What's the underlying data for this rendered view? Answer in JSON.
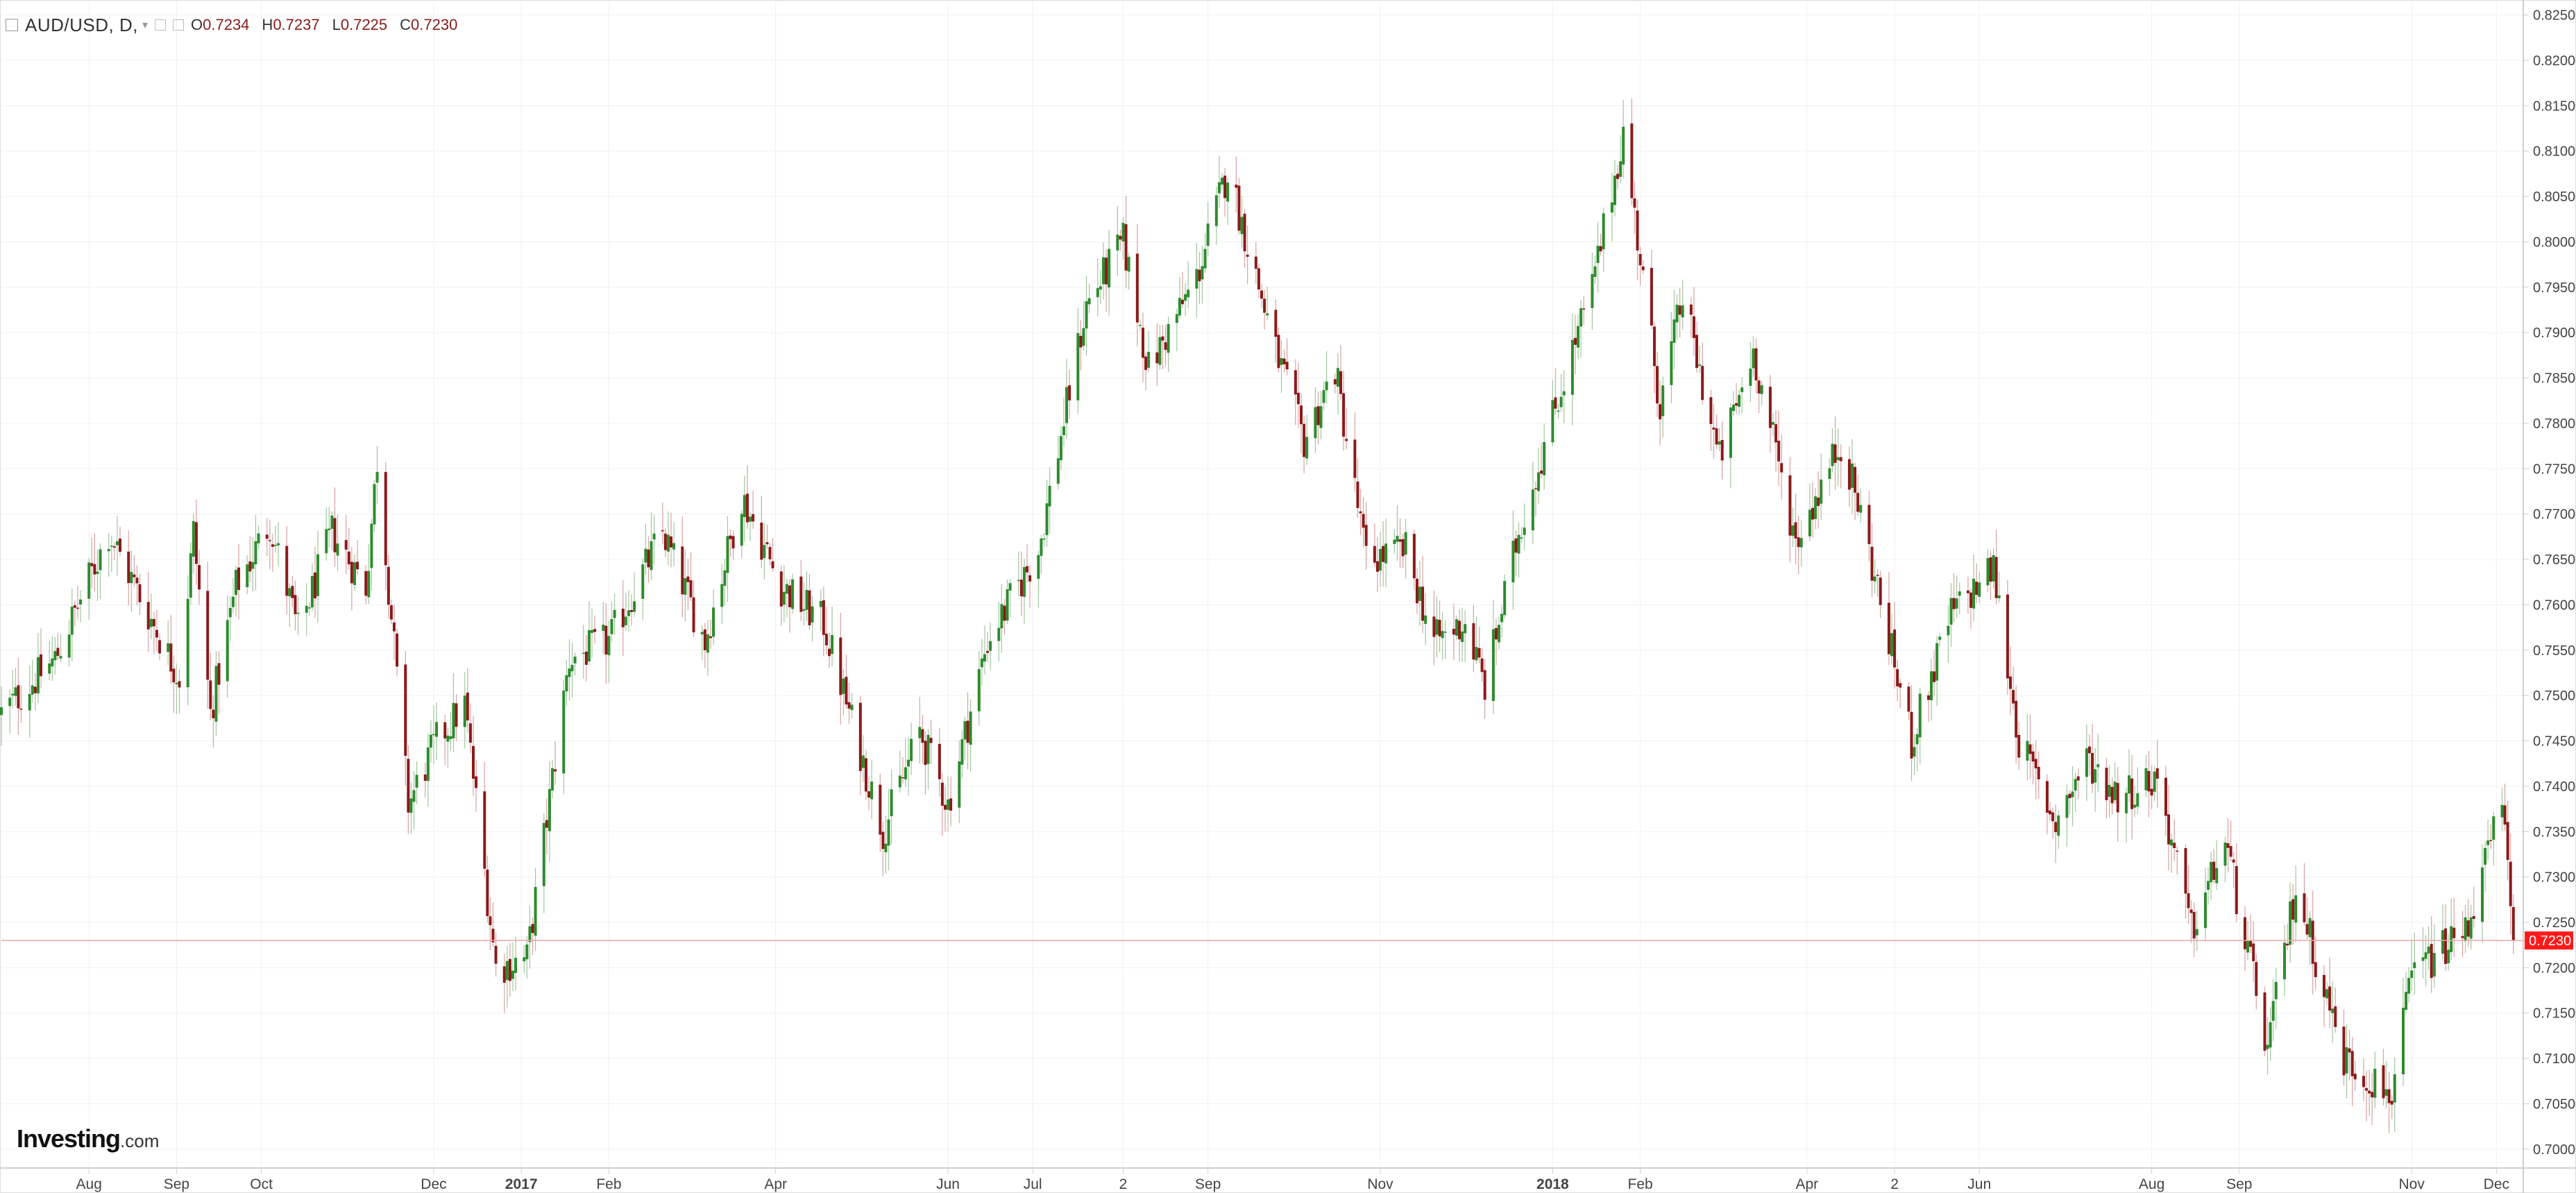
{
  "legend": {
    "symbol": "AUD/USD, D,",
    "open_label": "O",
    "open": "0.7234",
    "high_label": "H",
    "high": "0.7237",
    "low_label": "L",
    "low": "0.7225",
    "close_label": "C",
    "close": "0.7230"
  },
  "brand": {
    "name": "Investing",
    "suffix": ".com"
  },
  "colors": {
    "up": "#2e8b2e",
    "down": "#8b1a1a",
    "wick_up": "#9ec79e",
    "wick_down": "#d9a0a0",
    "grid": "#f0f0f0",
    "axis": "#cfcfcf",
    "last_price": "#ff1a1a"
  },
  "chart_data": {
    "type": "candlestick",
    "title": "",
    "xlabel": "",
    "ylabel": "",
    "grid": true,
    "ylim": [
      0.698,
      0.8265
    ],
    "y_ticks": [
      "0.8250",
      "0.8200",
      "0.8150",
      "0.8100",
      "0.8050",
      "0.8000",
      "0.7950",
      "0.7900",
      "0.7850",
      "0.7800",
      "0.7750",
      "0.7700",
      "0.7650",
      "0.7600",
      "0.7550",
      "0.7500",
      "0.7450",
      "0.7400",
      "0.7350",
      "0.7300",
      "0.7250",
      "0.7200",
      "0.7150",
      "0.7100",
      "0.7050",
      "0.7000"
    ],
    "x_range": [
      "2016-07-01",
      "2018-12-10"
    ],
    "x_ticks": [
      {
        "label": "Aug",
        "date": "2016-08-01",
        "bold": false
      },
      {
        "label": "Sep",
        "date": "2016-09-01",
        "bold": false
      },
      {
        "label": "Oct",
        "date": "2016-10-01",
        "bold": false
      },
      {
        "label": "Dec",
        "date": "2016-12-01",
        "bold": false
      },
      {
        "label": "2017",
        "date": "2017-01-01",
        "bold": true
      },
      {
        "label": "Feb",
        "date": "2017-02-01",
        "bold": false
      },
      {
        "label": "Apr",
        "date": "2017-04-01",
        "bold": false
      },
      {
        "label": "Jun",
        "date": "2017-06-01",
        "bold": false
      },
      {
        "label": "Jul",
        "date": "2017-07-01",
        "bold": false
      },
      {
        "label": "2",
        "date": "2017-08-02",
        "bold": false
      },
      {
        "label": "Sep",
        "date": "2017-09-01",
        "bold": false
      },
      {
        "label": "Nov",
        "date": "2017-11-01",
        "bold": false
      },
      {
        "label": "2018",
        "date": "2018-01-01",
        "bold": true
      },
      {
        "label": "Feb",
        "date": "2018-02-01",
        "bold": false
      },
      {
        "label": "Apr",
        "date": "2018-04-01",
        "bold": false
      },
      {
        "label": "2",
        "date": "2018-05-02",
        "bold": false
      },
      {
        "label": "Jun",
        "date": "2018-06-01",
        "bold": false
      },
      {
        "label": "Aug",
        "date": "2018-08-01",
        "bold": false
      },
      {
        "label": "Sep",
        "date": "2018-09-01",
        "bold": false
      },
      {
        "label": "Nov",
        "date": "2018-11-01",
        "bold": false
      },
      {
        "label": "Dec",
        "date": "2018-12-01",
        "bold": false
      }
    ],
    "last_price": 0.723,
    "last_price_label": "0.7230",
    "close_path": [
      {
        "date": "2016-07-01",
        "close": 0.748
      },
      {
        "date": "2016-07-20",
        "close": 0.754
      },
      {
        "date": "2016-08-08",
        "close": 0.768
      },
      {
        "date": "2016-08-22",
        "close": 0.759
      },
      {
        "date": "2016-09-02",
        "close": 0.752
      },
      {
        "date": "2016-09-07",
        "close": 0.768
      },
      {
        "date": "2016-09-13",
        "close": 0.748
      },
      {
        "date": "2016-09-22",
        "close": 0.762
      },
      {
        "date": "2016-10-04",
        "close": 0.769
      },
      {
        "date": "2016-10-14",
        "close": 0.757
      },
      {
        "date": "2016-10-26",
        "close": 0.768
      },
      {
        "date": "2016-11-07",
        "close": 0.762
      },
      {
        "date": "2016-11-11",
        "close": 0.776
      },
      {
        "date": "2016-11-22",
        "close": 0.738
      },
      {
        "date": "2016-12-02",
        "close": 0.745
      },
      {
        "date": "2016-12-12",
        "close": 0.749
      },
      {
        "date": "2016-12-23",
        "close": 0.72
      },
      {
        "date": "2017-01-03",
        "close": 0.721
      },
      {
        "date": "2017-01-18",
        "close": 0.754
      },
      {
        "date": "2017-02-01",
        "close": 0.756
      },
      {
        "date": "2017-02-20",
        "close": 0.768
      },
      {
        "date": "2017-03-07",
        "close": 0.756
      },
      {
        "date": "2017-03-20",
        "close": 0.772
      },
      {
        "date": "2017-04-03",
        "close": 0.762
      },
      {
        "date": "2017-04-18",
        "close": 0.758
      },
      {
        "date": "2017-05-09",
        "close": 0.735
      },
      {
        "date": "2017-05-22",
        "close": 0.746
      },
      {
        "date": "2017-06-01",
        "close": 0.738
      },
      {
        "date": "2017-06-15",
        "close": 0.756
      },
      {
        "date": "2017-07-03",
        "close": 0.766
      },
      {
        "date": "2017-07-20",
        "close": 0.793
      },
      {
        "date": "2017-08-02",
        "close": 0.8
      },
      {
        "date": "2017-08-11",
        "close": 0.786
      },
      {
        "date": "2017-08-28",
        "close": 0.796
      },
      {
        "date": "2017-09-08",
        "close": 0.808
      },
      {
        "date": "2017-09-25",
        "close": 0.788
      },
      {
        "date": "2017-10-05",
        "close": 0.778
      },
      {
        "date": "2017-10-16",
        "close": 0.786
      },
      {
        "date": "2017-10-27",
        "close": 0.765
      },
      {
        "date": "2017-11-10",
        "close": 0.766
      },
      {
        "date": "2017-11-20",
        "close": 0.756
      },
      {
        "date": "2017-12-01",
        "close": 0.758
      },
      {
        "date": "2017-12-08",
        "close": 0.751
      },
      {
        "date": "2017-12-20",
        "close": 0.768
      },
      {
        "date": "2018-01-05",
        "close": 0.785
      },
      {
        "date": "2018-01-15",
        "close": 0.795
      },
      {
        "date": "2018-01-26",
        "close": 0.812
      },
      {
        "date": "2018-02-08",
        "close": 0.782
      },
      {
        "date": "2018-02-16",
        "close": 0.794
      },
      {
        "date": "2018-03-01",
        "close": 0.776
      },
      {
        "date": "2018-03-13",
        "close": 0.788
      },
      {
        "date": "2018-03-28",
        "close": 0.767
      },
      {
        "date": "2018-04-13",
        "close": 0.778
      },
      {
        "date": "2018-04-20",
        "close": 0.77
      },
      {
        "date": "2018-05-08",
        "close": 0.745
      },
      {
        "date": "2018-05-22",
        "close": 0.759
      },
      {
        "date": "2018-06-06",
        "close": 0.764
      },
      {
        "date": "2018-06-15",
        "close": 0.745
      },
      {
        "date": "2018-06-28",
        "close": 0.736
      },
      {
        "date": "2018-07-09",
        "close": 0.743
      },
      {
        "date": "2018-07-20",
        "close": 0.739
      },
      {
        "date": "2018-08-03",
        "close": 0.741
      },
      {
        "date": "2018-08-15",
        "close": 0.724
      },
      {
        "date": "2018-08-27",
        "close": 0.734
      },
      {
        "date": "2018-09-11",
        "close": 0.711
      },
      {
        "date": "2018-09-21",
        "close": 0.729
      },
      {
        "date": "2018-10-08",
        "close": 0.71
      },
      {
        "date": "2018-10-25",
        "close": 0.706
      },
      {
        "date": "2018-11-01",
        "close": 0.719
      },
      {
        "date": "2018-11-08",
        "close": 0.721
      },
      {
        "date": "2018-11-20",
        "close": 0.724
      },
      {
        "date": "2018-12-03",
        "close": 0.738
      },
      {
        "date": "2018-12-07",
        "close": 0.723
      }
    ]
  }
}
